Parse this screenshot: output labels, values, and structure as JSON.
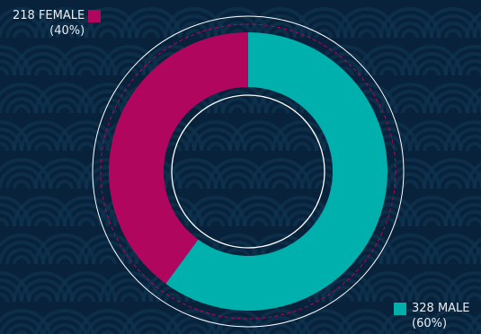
{
  "colors": {
    "background": "#07223a",
    "pattern": "#0f3350",
    "female": "#b0065e",
    "male": "#00b0ac",
    "ring": "#ffffff",
    "dashed": "#b0065e"
  },
  "chart_data": {
    "type": "pie",
    "style": "donut",
    "title": "",
    "series": [
      {
        "name": "FEMALE",
        "value": 218,
        "percent": 40,
        "label": "218 FEMALE",
        "percent_label": "(40%)"
      },
      {
        "name": "MALE",
        "value": 328,
        "percent": 60,
        "label": "328 MALE",
        "percent_label": "(60%)"
      }
    ],
    "start": "12 o'clock",
    "direction": "clockwise from male",
    "legend_placement": "female top-left, male bottom-right"
  }
}
